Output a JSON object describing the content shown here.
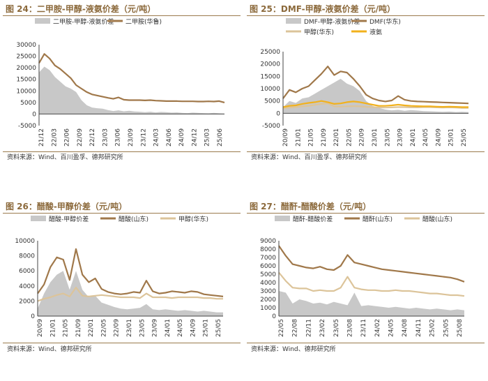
{
  "colors": {
    "title": "#8c6a3c",
    "spread": "#c8c8c8",
    "main": "#a0784a",
    "second": "#dcc49a",
    "third": "#f2b11c",
    "axis": "#444444"
  },
  "chart_data": [
    {
      "type": "line",
      "id": "24",
      "title": "图 24：二甲胺-甲醇-液氨价差（元/吨）",
      "source": "资料来源：Wind、百川盈孚、德邦研究所",
      "ylim": [
        -5000,
        30000
      ],
      "yticks": [
        "30000",
        "25000",
        "20000",
        "15000",
        "10000",
        "5000",
        "0",
        "-5000"
      ],
      "xticks": [
        "21/12",
        "22/03",
        "22/06",
        "22/09",
        "22/12",
        "23/03",
        "23/06",
        "23/09",
        "23/12",
        "24/03",
        "24/06",
        "24/09",
        "24/12",
        "25/03",
        "25/06"
      ],
      "series": [
        {
          "name": "二甲胺-甲醇-液氨价差",
          "kind": "area",
          "color": "#c8c8c8",
          "values": [
            18000,
            20500,
            19000,
            16000,
            14000,
            12000,
            11000,
            9500,
            6000,
            3800,
            2800,
            2500,
            2300,
            1700,
            1300,
            1600,
            1200,
            1400,
            1100,
            1000,
            800,
            1000,
            700,
            900,
            800,
            600,
            700,
            500,
            400,
            600,
            500,
            400,
            300,
            500,
            300,
            200
          ]
        },
        {
          "name": "二甲胺(华鲁)",
          "kind": "line",
          "color": "#a0784a",
          "values": [
            22000,
            26000,
            24000,
            21000,
            19500,
            17500,
            15500,
            12500,
            11000,
            9500,
            8500,
            8000,
            7500,
            7000,
            6600,
            7200,
            6200,
            6000,
            6000,
            6000,
            5900,
            6000,
            5800,
            5700,
            5600,
            5600,
            5600,
            5500,
            5500,
            5500,
            5400,
            5400,
            5500,
            5400,
            5600,
            5000
          ]
        }
      ]
    },
    {
      "type": "line",
      "id": "25",
      "title": "图 25：DMF-甲醇-液氨价差（元/吨）",
      "source": "资料来源：Wind、百川盈孚、德邦研究所",
      "ylim": [
        -5000,
        25000
      ],
      "yticks": [
        "25000",
        "20000",
        "15000",
        "10000",
        "5000",
        "0",
        "-5000"
      ],
      "xticks": [
        "20/09",
        "21/01",
        "21/05",
        "21/09",
        "22/01",
        "22/05",
        "22/09",
        "23/01",
        "23/05",
        "23/09",
        "24/01",
        "24/05",
        "24/09",
        "25/01",
        "25/05"
      ],
      "series": [
        {
          "name": "DMF-甲醇-液氨价差",
          "kind": "area",
          "color": "#c8c8c8",
          "values": [
            2500,
            5000,
            4200,
            6000,
            6500,
            8000,
            9500,
            11000,
            12500,
            14000,
            12000,
            11000,
            9000,
            5000,
            3000,
            2200,
            1500,
            1200,
            1400,
            1000,
            1300,
            1100,
            900,
            800,
            700,
            600,
            700,
            500,
            600,
            500
          ]
        },
        {
          "name": "DMF(华东)",
          "kind": "line",
          "color": "#a0784a",
          "values": [
            6000,
            9500,
            8500,
            10000,
            11000,
            13500,
            16000,
            19000,
            15500,
            17000,
            16500,
            14000,
            11000,
            7500,
            6000,
            5200,
            4800,
            5200,
            7000,
            5500,
            5000,
            4800,
            4700,
            4600,
            4500,
            4400,
            4300,
            4200,
            4100,
            4000
          ]
        },
        {
          "name": "甲醇(华东)",
          "kind": "line",
          "color": "#dcc49a",
          "values": [
            2000,
            2300,
            2500,
            2800,
            3000,
            3400,
            3800,
            4000,
            2800,
            2700,
            2800,
            2900,
            2800,
            2600,
            2500,
            2400,
            2300,
            2400,
            2500,
            2500,
            2400,
            2400,
            2500,
            2500,
            2400,
            2300,
            2400,
            2300,
            2200,
            2200
          ]
        },
        {
          "name": "液氨",
          "kind": "line",
          "color": "#f2b11c",
          "values": [
            2500,
            3000,
            3200,
            3800,
            4200,
            4500,
            5000,
            4500,
            3800,
            4000,
            4500,
            4800,
            4500,
            4000,
            3500,
            3000,
            3000,
            3200,
            3500,
            3200,
            3000,
            2900,
            2800,
            2800,
            2700,
            2600,
            2700,
            2600,
            2500,
            2500
          ]
        }
      ]
    },
    {
      "type": "line",
      "id": "26",
      "title": "图 26：醋酸-甲醇价差（元/吨）",
      "source": "资料来源：Wind、德邦研究所",
      "ylim": [
        0,
        10000
      ],
      "yticks": [
        "10000",
        "8000",
        "6000",
        "4000",
        "2000",
        "0"
      ],
      "xticks": [
        "20/09",
        "21/01",
        "21/05",
        "21/09",
        "22/01",
        "22/05",
        "22/09",
        "23/01",
        "23/05",
        "23/09",
        "24/01",
        "24/05",
        "24/09",
        "25/01",
        "25/05"
      ],
      "series": [
        {
          "name": "醋酸-甲醇价差",
          "kind": "area",
          "color": "#c8c8c8",
          "values": [
            1000,
            3000,
            4500,
            5500,
            6000,
            3500,
            6000,
            3500,
            2500,
            2700,
            1800,
            1500,
            1200,
            1000,
            900,
            1000,
            1100,
            1600,
            900,
            800,
            900,
            800,
            700,
            800,
            700,
            600,
            700,
            600,
            500,
            500
          ]
        },
        {
          "name": "醋酸(山东)",
          "kind": "line",
          "color": "#a0784a",
          "values": [
            3000,
            4200,
            6500,
            7800,
            7500,
            4800,
            8900,
            5500,
            4500,
            5000,
            3600,
            3200,
            3000,
            2900,
            3000,
            3200,
            3100,
            4700,
            3300,
            3000,
            3100,
            3300,
            3200,
            3100,
            3300,
            3200,
            2900,
            2800,
            2700,
            2600
          ]
        },
        {
          "name": "甲醇(华东)",
          "kind": "line",
          "color": "#dcc49a",
          "values": [
            2000,
            2300,
            2500,
            2800,
            3000,
            2600,
            3800,
            2700,
            2600,
            2700,
            2800,
            2700,
            2600,
            2500,
            2500,
            2500,
            2400,
            3000,
            2500,
            2500,
            2500,
            2400,
            2500,
            2500,
            2500,
            2500,
            2400,
            2400,
            2300,
            2300
          ]
        }
      ]
    },
    {
      "type": "line",
      "id": "27",
      "title": "图 27：醋酐-醋酸价差（元/吨）",
      "source": "资料来源：Wind、德邦研究所",
      "ylim": [
        0,
        9000
      ],
      "yticks": [
        "9000",
        "8000",
        "7000",
        "6000",
        "5000",
        "4000",
        "3000",
        "2000",
        "1000",
        "0"
      ],
      "xticks": [
        "22/05",
        "22/08",
        "22/11",
        "23/02",
        "23/05",
        "23/08",
        "23/11",
        "24/02",
        "24/05",
        "24/08",
        "24/11",
        "25/02",
        "25/05",
        "25/08"
      ],
      "series": [
        {
          "name": "醋酐-醋酸价差",
          "kind": "area",
          "color": "#c8c8c8",
          "values": [
            3000,
            2800,
            1500,
            2000,
            1800,
            1500,
            1600,
            1400,
            1700,
            1500,
            1300,
            2800,
            1200,
            1300,
            1200,
            1100,
            1000,
            1100,
            1000,
            900,
            1000,
            900,
            800,
            900,
            800,
            700,
            800,
            700
          ]
        },
        {
          "name": "醋酐(山东)",
          "kind": "line",
          "color": "#a0784a",
          "values": [
            8400,
            7200,
            6200,
            6000,
            5800,
            5700,
            5900,
            5600,
            5500,
            6000,
            7300,
            6400,
            6200,
            6000,
            5800,
            5600,
            5500,
            5400,
            5300,
            5200,
            5100,
            5000,
            4900,
            4800,
            4700,
            4600,
            4400,
            4100
          ]
        },
        {
          "name": "醋酸(山东)",
          "kind": "line",
          "color": "#dcc49a",
          "values": [
            5200,
            4200,
            3400,
            3300,
            3300,
            3000,
            3100,
            3000,
            3000,
            3400,
            4700,
            3400,
            3200,
            3100,
            3100,
            3000,
            3000,
            3100,
            3000,
            3000,
            2900,
            2800,
            2700,
            2700,
            2600,
            2500,
            2500,
            2400
          ]
        }
      ]
    }
  ]
}
